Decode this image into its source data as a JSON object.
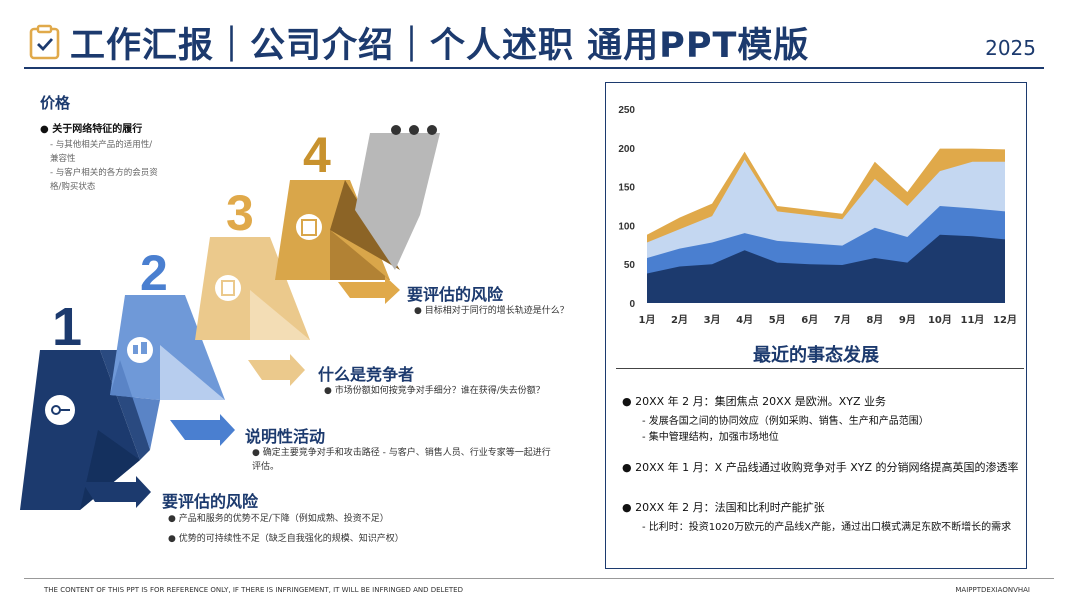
{
  "header": {
    "title": "工作汇报｜公司介绍｜个人述职 通用PPT模版",
    "year": "2025"
  },
  "left": {
    "section_title": "价格",
    "bullet": "关于网络特征的履行",
    "subs": [
      "与其他相关产品的适用性/兼容性",
      "与客户相关的各方的会员资格/购买状态"
    ]
  },
  "steps": [
    {
      "label": "要评估的风险",
      "descs": [
        "产品和服务的优势不足/下降（例如成熟、投资不足）",
        "优势的可持续性不足（缺乏自我强化的规模、知识产权）"
      ]
    },
    {
      "label": "说明性活动",
      "desc": "确定主要竞争对手和攻击路径 - 与客户、销售人员、行业专家等一起进行评估。"
    },
    {
      "label": "什么是竞争者",
      "desc": "市场份额如何按竞争对手细分？谁在获得/失去份额？"
    },
    {
      "label": "要评估的风险",
      "desc": "目标相对于同行的增长轨迹是什么？"
    }
  ],
  "chart_data": {
    "type": "area",
    "stacked": false,
    "categories": [
      "1月",
      "2月",
      "3月",
      "4月",
      "5月",
      "6月",
      "7月",
      "8月",
      "9月",
      "10月",
      "11月",
      "12月"
    ],
    "ylim": [
      0,
      250
    ],
    "yticks": [
      0,
      50,
      100,
      150,
      200,
      250
    ],
    "series": [
      {
        "color": "#e0a94a",
        "values": [
          88,
          110,
          128,
          195,
          125,
          120,
          115,
          182,
          143,
          199,
          199,
          198
        ]
      },
      {
        "color": "#c4d7f1",
        "values": [
          78,
          95,
          112,
          185,
          118,
          113,
          108,
          160,
          125,
          170,
          182,
          182
        ]
      },
      {
        "color": "#4a7fd0",
        "values": [
          58,
          70,
          78,
          90,
          80,
          77,
          74,
          97,
          85,
          125,
          122,
          118
        ]
      },
      {
        "color": "#1c3a6e",
        "values": [
          38,
          47,
          50,
          68,
          52,
          50,
          49,
          58,
          52,
          88,
          86,
          82
        ]
      }
    ],
    "grid": false
  },
  "events": {
    "title": "最近的事态发展",
    "items": [
      {
        "text": "20XX 年 2 月：集团焦点 20XX 是欧洲。XYZ 业务",
        "subs": [
          "发展各国之间的协同效应（例如采购、销售、生产和产品范围）",
          "集中管理结构，加强市场地位"
        ]
      },
      {
        "text": "20XX 年 1 月：X 产品线通过收购竞争对手 XYZ 的分销网络提高英国的渗透率",
        "subs": []
      },
      {
        "text": "20XX 年 2 月：法国和比利时产能扩张",
        "subs": [
          "比利时：投资1020万欧元的产品线X产能，通过出口模式满足东欧不断增长的需求"
        ]
      }
    ]
  },
  "footer": {
    "left": "THE CONTENT OF THIS PPT IS FOR REFERENCE ONLY, IF THERE IS INFRINGEMENT, IT WILL BE INFRINGED AND DELETED",
    "right": "MAIPPTDEXIAONVHAI"
  }
}
